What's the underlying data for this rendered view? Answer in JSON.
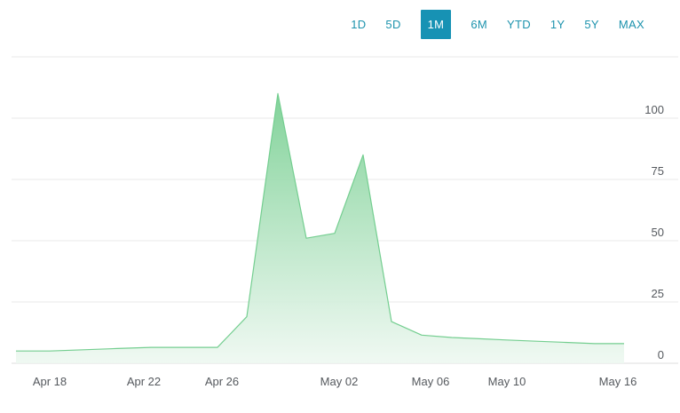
{
  "toolbar": {
    "ranges": [
      {
        "label": "1D",
        "selected": false
      },
      {
        "label": "5D",
        "selected": false
      },
      {
        "label": "1M",
        "selected": true
      },
      {
        "label": "6M",
        "selected": false
      },
      {
        "label": "YTD",
        "selected": false
      },
      {
        "label": "1Y",
        "selected": false
      },
      {
        "label": "5Y",
        "selected": false
      },
      {
        "label": "MAX",
        "selected": false
      }
    ]
  },
  "colors": {
    "accent_teal": "#1792b4",
    "range_text_teal": "#1d93ad",
    "selected_text": "#ffffff",
    "area_green": "#7bd094",
    "area_green_fade": "#eef8f1",
    "area_outline": "#74ce90",
    "gridline": "#e8e8e8",
    "zero_line": "#dedede",
    "axis_label": "#55595e"
  },
  "chart_data": {
    "type": "area",
    "title": "",
    "xlabel": "",
    "ylabel": "",
    "grid": true,
    "y_axis_position": "right",
    "ylim": [
      0,
      125
    ],
    "yticks": [
      0,
      25,
      50,
      75,
      100
    ],
    "xtick_labels": [
      "Apr 18",
      "Apr 22",
      "Apr 26",
      "May 02",
      "May 06",
      "May 10",
      "May 16"
    ],
    "x": [
      "Apr 18",
      "Apr 19",
      "Apr 20",
      "Apr 21",
      "Apr 22",
      "Apr 25",
      "Apr 26",
      "Apr 27",
      "Apr 28",
      "Apr 29",
      "May 02",
      "May 03",
      "May 04",
      "May 05",
      "May 06",
      "May 09",
      "May 10",
      "May 11",
      "May 12",
      "May 13",
      "May 16"
    ],
    "values": [
      5,
      5,
      5.5,
      6,
      6.5,
      6.5,
      6.5,
      19,
      110,
      51,
      53,
      85,
      17,
      11.5,
      10.5,
      10,
      9.5,
      9,
      8.5,
      8,
      8
    ]
  }
}
